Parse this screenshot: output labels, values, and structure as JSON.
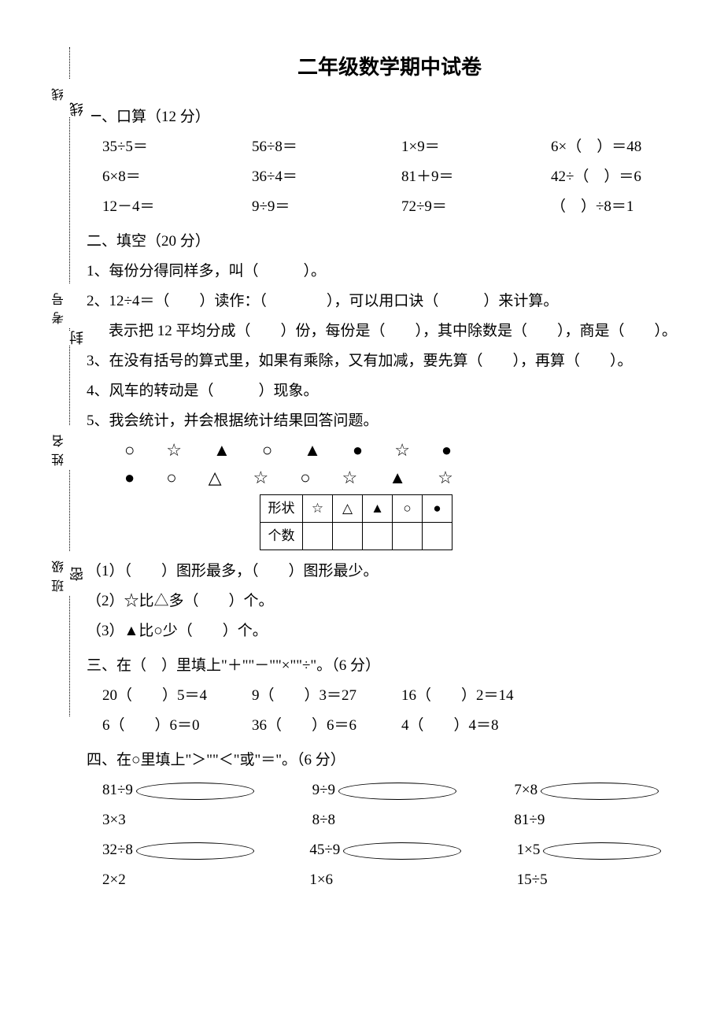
{
  "title": "二年级数学期中试卷",
  "binding": {
    "field_class": "班级",
    "field_name": "姓名",
    "field_id": "考号",
    "seal_mi": "密",
    "seal_feng": "封",
    "seal_xian": "线"
  },
  "colors": {
    "text": "#000000",
    "background": "#ffffff"
  },
  "section1": {
    "heading": "一、口算（12 分）",
    "rows": [
      [
        "35÷5＝",
        "56÷8＝",
        "1×9＝",
        "6×（　）＝48"
      ],
      [
        "6×8＝",
        "36÷4＝",
        "81＋9＝",
        "42÷（　）＝6"
      ],
      [
        "12－4＝",
        "9÷9＝",
        "72÷9＝",
        "（　）÷8＝1"
      ]
    ]
  },
  "section2": {
    "heading": "二、填空（20 分）",
    "q1": "1、每份分得同样多，叫（　　　）。",
    "q2a": "2、12÷4＝（　　）读作：（　　　　），可以用口诀（　　　）来计算。",
    "q2b": "表示把 12 平均分成（　　）份，每份是（　　），其中除数是（　　），商是（　　）。",
    "q3": "3、在没有括号的算式里，如果有乘除，又有加减，要先算（　　），再算（　　）。",
    "q4": "4、风车的转动是（　　　）现象。",
    "q5": "5、我会统计，并会根据统计结果回答问题。",
    "shapes": {
      "row1": [
        "○",
        "☆",
        "▲",
        "○",
        "▲",
        "●",
        "☆",
        "●"
      ],
      "row2": [
        "●",
        "○",
        "△",
        "☆",
        "○",
        "☆",
        "▲",
        "☆"
      ]
    },
    "table": {
      "head_label": "形状",
      "head_shapes": [
        "☆",
        "△",
        "▲",
        "○",
        "●"
      ],
      "count_label": "个数"
    },
    "q5_1": "（1）（　　）图形最多，（　　）图形最少。",
    "q5_2": "（2）☆比△多（　　）个。",
    "q5_3": "（3）▲比○少（　　）个。"
  },
  "section3": {
    "heading": "三、在（　）里填上\"＋\"\"－\"\"×\"\"÷\"。（6 分）",
    "rows": [
      [
        "20（　　）5＝4",
        "9（　　）3＝27",
        "16（　　）2＝14"
      ],
      [
        "6（　　）6＝0",
        "36（　　）6＝6",
        "4（　　）4＝8"
      ]
    ]
  },
  "section4": {
    "heading": "四、在○里填上\"＞\"\"＜\"或\"＝\"。（6 分）",
    "rows": [
      [
        [
          "81÷9",
          "3×3"
        ],
        [
          "9÷9",
          "8÷8"
        ],
        [
          "7×8",
          "81÷9"
        ]
      ],
      [
        [
          "32÷8",
          "2×2"
        ],
        [
          "45÷9",
          "1×6"
        ],
        [
          "1×5",
          "15÷5"
        ]
      ]
    ]
  }
}
